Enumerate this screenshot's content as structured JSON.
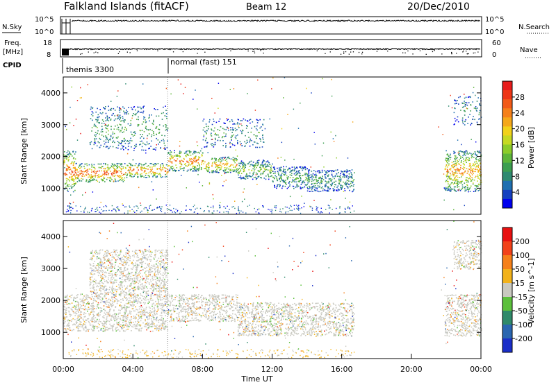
{
  "header": {
    "station": "Falkland Islands (fitACF)",
    "beam": "Beam 12",
    "date": "20/Dec/2010"
  },
  "noise_panel": {
    "left_label": "N.Sky",
    "right_label": "N.Search",
    "left_ticks": [
      "10^5",
      "10^0"
    ],
    "right_ticks": [
      "10^5",
      "10^0"
    ]
  },
  "freq_panel": {
    "left_label_1": "Freq.",
    "left_label_2": "[MHz]",
    "left_ticks": [
      "18",
      "8"
    ],
    "right_label": "Nave",
    "right_ticks": [
      "60",
      "0"
    ]
  },
  "cpid": {
    "label": "CPID",
    "modes": [
      {
        "name": "themis 3300",
        "start_hour": 0.0
      },
      {
        "name": "normal (fast) 151",
        "start_hour": 6.0
      }
    ]
  },
  "chart_data": [
    {
      "type": "heatmap",
      "name": "power",
      "xlabel": "",
      "ylabel": "Slant Range [km]",
      "x_range_hours": [
        0,
        24
      ],
      "ylim": [
        180,
        4500
      ],
      "y_ticks": [
        1000,
        2000,
        3000,
        4000
      ],
      "colorbar": {
        "label": "Power [dB]",
        "ticks": [
          "28",
          "24",
          "20",
          "16",
          "12",
          "8",
          "4"
        ],
        "colors": [
          "#0000ee",
          "#1540c0",
          "#1f6fb0",
          "#2f8a70",
          "#3c9e50",
          "#5db53a",
          "#8ccc2a",
          "#c6d922",
          "#f2d21a",
          "#f5a81a",
          "#f5801a",
          "#f25a18",
          "#ee3616",
          "#e81c1c"
        ]
      },
      "echo_segments": [
        {
          "t0": 0.0,
          "t1": 0.7,
          "r0": 900,
          "r1": 2200,
          "level": 0.85
        },
        {
          "t0": 0.7,
          "t1": 3.5,
          "r0": 1200,
          "r1": 1800,
          "level": 0.9
        },
        {
          "t0": 3.5,
          "t1": 6.0,
          "r0": 1350,
          "r1": 1800,
          "level": 0.85
        },
        {
          "t0": 6.0,
          "t1": 8.0,
          "r0": 1550,
          "r1": 2200,
          "level": 0.8
        },
        {
          "t0": 8.0,
          "t1": 10.0,
          "r0": 1500,
          "r1": 2000,
          "level": 0.75
        },
        {
          "t0": 10.0,
          "t1": 12.0,
          "r0": 1300,
          "r1": 1900,
          "level": 0.45
        },
        {
          "t0": 12.0,
          "t1": 14.0,
          "r0": 1000,
          "r1": 1700,
          "level": 0.35
        },
        {
          "t0": 14.0,
          "t1": 16.7,
          "r0": 900,
          "r1": 1600,
          "level": 0.3
        },
        {
          "t0": 21.9,
          "t1": 24.0,
          "r0": 900,
          "r1": 2200,
          "level": 0.75
        },
        {
          "t0": 1.5,
          "t1": 6.0,
          "r0": 2200,
          "r1": 3600,
          "level": 0.35
        },
        {
          "t0": 8.0,
          "t1": 11.5,
          "r0": 2300,
          "r1": 3200,
          "level": 0.3
        },
        {
          "t0": 22.4,
          "t1": 24.0,
          "r0": 3000,
          "r1": 3900,
          "level": 0.3
        }
      ]
    },
    {
      "type": "heatmap",
      "name": "velocity",
      "xlabel": "Time UT",
      "ylabel": "Slant Range [km]",
      "x_range_hours": [
        0,
        24
      ],
      "x_ticks": [
        "00:00",
        "04:00",
        "08:00",
        "12:00",
        "16:00",
        "20:00",
        "00:00"
      ],
      "ylim": [
        180,
        4500
      ],
      "y_ticks": [
        1000,
        2000,
        3000,
        4000
      ],
      "colorbar": {
        "label": "Velocity [m s^-1]",
        "ticks": [
          "200",
          "100",
          "50",
          "15",
          "-15",
          "-50",
          "-100",
          "-200"
        ],
        "colors": [
          "#1a2ec8",
          "#2a66b0",
          "#2f8a6a",
          "#5cc03c",
          "#c9c9c0",
          "#f2b21a",
          "#f5801a",
          "#f2421a",
          "#e81010"
        ]
      },
      "echo_segments": [
        {
          "t0": 0.0,
          "t1": 6.0,
          "r0": 1050,
          "r1": 2200,
          "level": 0.5
        },
        {
          "t0": 6.0,
          "t1": 10.0,
          "r0": 1350,
          "r1": 2200,
          "level": 0.5
        },
        {
          "t0": 10.0,
          "t1": 16.7,
          "r0": 900,
          "r1": 1950,
          "level": 0.5
        },
        {
          "t0": 21.9,
          "t1": 24.0,
          "r0": 900,
          "r1": 2200,
          "level": 0.5
        },
        {
          "t0": 1.5,
          "t1": 6.0,
          "r0": 2200,
          "r1": 3600,
          "level": 0.5
        },
        {
          "t0": 22.4,
          "t1": 24.0,
          "r0": 3000,
          "r1": 3900,
          "level": 0.5
        }
      ]
    }
  ]
}
